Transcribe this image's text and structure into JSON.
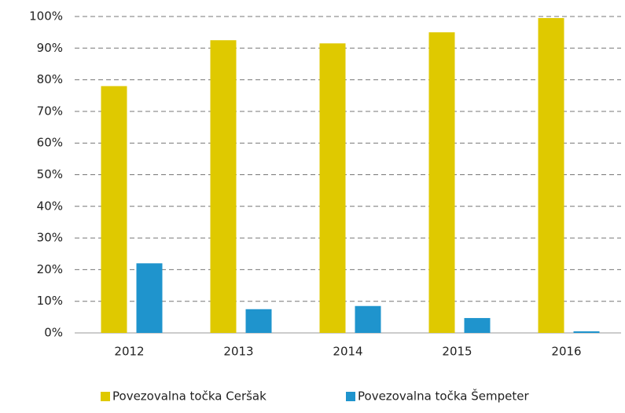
{
  "chart_data": {
    "type": "bar",
    "categories": [
      "2012",
      "2013",
      "2014",
      "2015",
      "2016"
    ],
    "series": [
      {
        "name": "Povezovalna točka Ceršak",
        "color": "#dfc900",
        "values": [
          78,
          92.5,
          91.5,
          95,
          99.5
        ]
      },
      {
        "name": "Povezovalna točka Šempeter",
        "color": "#1f94cd",
        "values": [
          22,
          7.5,
          8.5,
          4.7,
          0.5
        ]
      }
    ],
    "ylim": [
      0,
      100
    ],
    "yticks": [
      {
        "value": 0,
        "label": "0%"
      },
      {
        "value": 10,
        "label": "10%"
      },
      {
        "value": 20,
        "label": "20%"
      },
      {
        "value": 30,
        "label": "30%"
      },
      {
        "value": 40,
        "label": "40%"
      },
      {
        "value": 50,
        "label": "50%"
      },
      {
        "value": 60,
        "label": "60%"
      },
      {
        "value": 70,
        "label": "70%"
      },
      {
        "value": 80,
        "label": "80%"
      },
      {
        "value": 90,
        "label": "90%"
      },
      {
        "value": 100,
        "label": "100%"
      }
    ],
    "grid": true,
    "legend": "bottom"
  }
}
